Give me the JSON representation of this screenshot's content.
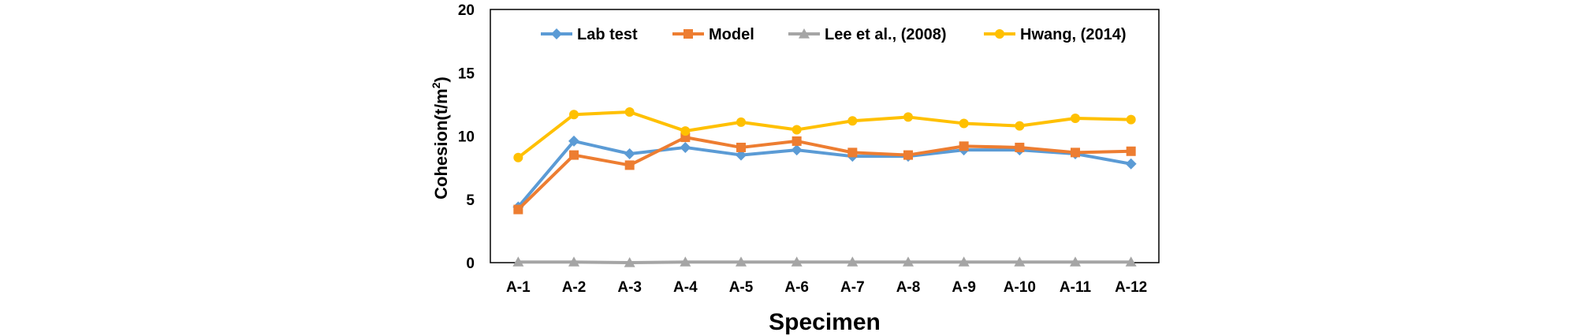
{
  "chart_data": {
    "type": "line",
    "categories": [
      "A-1",
      "A-2",
      "A-3",
      "A-4",
      "A-5",
      "A-6",
      "A-7",
      "A-8",
      "A-9",
      "A-10",
      "A-11",
      "A-12"
    ],
    "xlabel": "Specimen",
    "ylabel_main": "Cohesion(t/m",
    "ylabel_sup": "2",
    "ylabel_close": ")",
    "ylim": [
      0,
      20
    ],
    "yticks": [
      "0",
      "5",
      "10",
      "15",
      "20"
    ],
    "ytick_values": [
      0,
      5,
      10,
      15,
      20
    ],
    "grid": false,
    "legend_position": "top",
    "series": [
      {
        "name": "Lab test",
        "color": "#5b9bd5",
        "marker": "diamond",
        "values": [
          4.4,
          9.6,
          8.6,
          9.1,
          8.5,
          8.9,
          8.4,
          8.4,
          8.9,
          8.9,
          8.6,
          7.8
        ]
      },
      {
        "name": "Model",
        "color": "#ed7d31",
        "marker": "square",
        "values": [
          4.2,
          8.5,
          7.7,
          9.9,
          9.1,
          9.6,
          8.7,
          8.5,
          9.2,
          9.1,
          8.7,
          8.8
        ]
      },
      {
        "name": "Lee et al., (2008)",
        "color": "#a5a5a5",
        "marker": "triangle",
        "values": [
          0.05,
          0.05,
          0.0,
          0.05,
          0.05,
          0.05,
          0.05,
          0.05,
          0.05,
          0.05,
          0.05,
          0.05
        ]
      },
      {
        "name": "Hwang, (2014)",
        "color": "#ffc000",
        "marker": "circle",
        "values": [
          8.3,
          11.7,
          11.9,
          10.4,
          11.1,
          10.5,
          11.2,
          11.5,
          11.0,
          10.8,
          11.4,
          11.3
        ]
      }
    ]
  }
}
